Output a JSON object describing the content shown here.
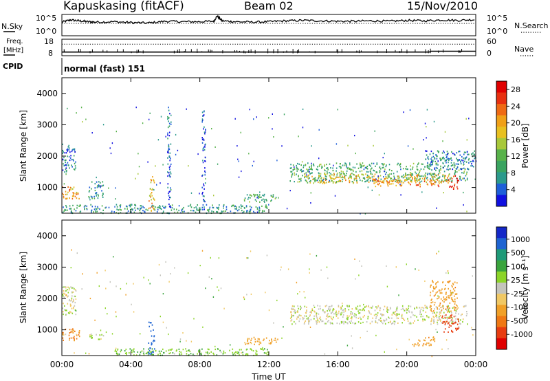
{
  "header": {
    "station": "Kapuskasing (fitACF)",
    "beam": "Beam 02",
    "date": "15/Nov/2010"
  },
  "noise_panel": {
    "left_label": "N.Sky",
    "left_ticks": [
      "10^5",
      "10^0"
    ],
    "right_label": "N.Search",
    "right_ticks": [
      "10^5",
      "10^0"
    ]
  },
  "freq_panel": {
    "left_label_line1": "Freq.",
    "left_label_line2": "[MHz]",
    "left_ticks": [
      "18",
      "8"
    ],
    "right_label": "Nave",
    "right_ticks": [
      "60",
      "0"
    ]
  },
  "cpid": {
    "label": "CPID",
    "mode": "normal (fast) 151"
  },
  "colors": {
    "power_scale": [
      "#1010e0",
      "#1e5fd8",
      "#2b9a8c",
      "#3aa460",
      "#58b24a",
      "#a8c83a",
      "#e8c020",
      "#f0a018",
      "#ef6a14",
      "#e83010",
      "#e00000"
    ],
    "velocity_scale": [
      "#1428c8",
      "#1e64d2",
      "#1e9a78",
      "#3aa43c",
      "#8cd428",
      "#c8c8c0",
      "#f0c864",
      "#f0a028",
      "#ef7814",
      "#e83c10",
      "#e00000"
    ],
    "ground_scatter": "#c4c4bc"
  },
  "chart_data": [
    {
      "type": "line",
      "panel": "noise",
      "x_unit": "UT hours",
      "xlim": [
        0,
        24
      ],
      "series": [
        {
          "name": "N.Sky",
          "x": [
            0,
            0.5,
            1,
            1.5,
            2,
            3,
            4,
            5,
            6,
            7,
            8,
            8.8,
            9,
            9.3,
            10,
            11,
            12,
            13,
            14,
            15,
            16,
            17,
            18,
            19,
            20,
            21,
            22,
            23,
            24
          ],
          "values": [
            3.2,
            3.7,
            3.5,
            3.3,
            3.2,
            3.3,
            3.1,
            3.0,
            3.4,
            3.3,
            3.3,
            3.4,
            4.6,
            3.5,
            3.3,
            3.2,
            3.3,
            3.5,
            3.6,
            3.5,
            3.4,
            3.4,
            3.5,
            3.4,
            3.6,
            3.5,
            3.7,
            3.6,
            3.8
          ]
        },
        {
          "name": "N.Search",
          "x": [
            0,
            4,
            8,
            12,
            16,
            20,
            24
          ],
          "values": [
            2.9,
            2.9,
            2.9,
            2.9,
            2.9,
            2.9,
            2.9
          ]
        }
      ],
      "ylim_log10": [
        0,
        5
      ]
    },
    {
      "type": "line",
      "panel": "frequency_nave",
      "x_unit": "UT hours",
      "xlim": [
        0,
        24
      ],
      "series": [
        {
          "name": "Freq.",
          "x": [
            0,
            2,
            4,
            6,
            8,
            10,
            12,
            14,
            16,
            18,
            20,
            21.3,
            21.4,
            22,
            24
          ],
          "values": [
            10.2,
            10.2,
            10.2,
            10.2,
            10.2,
            10.2,
            10.2,
            10.2,
            10.2,
            10.2,
            10.2,
            10.2,
            10.7,
            10.7,
            10.7
          ]
        },
        {
          "name": "Nave",
          "x": [
            0,
            4,
            8,
            12,
            16,
            20,
            24
          ],
          "values": [
            42,
            42,
            42,
            42,
            42,
            42,
            42
          ]
        }
      ],
      "ylim_left": [
        8,
        18
      ],
      "ylim_right": [
        0,
        60
      ]
    },
    {
      "type": "heatmap",
      "panel": "power",
      "xlabel": "",
      "ylabel": "Slant Range [km]",
      "xlim": [
        0,
        24
      ],
      "ylim": [
        180,
        4500
      ],
      "yticks": [
        1000,
        2000,
        3000,
        4000
      ],
      "colorbar_label": "Power [dB]",
      "colorbar_ticks": [
        4,
        8,
        12,
        16,
        20,
        24,
        28
      ],
      "colorbar_range": [
        0,
        30
      ],
      "regions": [
        {
          "t0": 0.0,
          "t1": 0.8,
          "r0": 1500,
          "r1": 2400,
          "value": 6
        },
        {
          "t0": 0.0,
          "t1": 1.0,
          "r0": 650,
          "r1": 1050,
          "value": 20
        },
        {
          "t0": 1.5,
          "t1": 2.4,
          "r0": 650,
          "r1": 1250,
          "value": 8
        },
        {
          "t0": 0.0,
          "t1": 12.0,
          "r0": 200,
          "r1": 480,
          "value": 8
        },
        {
          "t0": 5.0,
          "t1": 5.35,
          "r0": 250,
          "r1": 1400,
          "value": 18
        },
        {
          "t0": 6.1,
          "t1": 6.3,
          "r0": 300,
          "r1": 3600,
          "value": 4
        },
        {
          "t0": 8.1,
          "t1": 8.3,
          "r0": 300,
          "r1": 3500,
          "value": 4
        },
        {
          "t0": 10.5,
          "t1": 12.5,
          "r0": 550,
          "r1": 800,
          "value": 10
        },
        {
          "t0": 13.2,
          "t1": 23.5,
          "r0": 1200,
          "r1": 1800,
          "value": 10
        },
        {
          "t0": 14.0,
          "t1": 22.5,
          "r0": 1150,
          "r1": 1450,
          "value": 18
        },
        {
          "t0": 18.0,
          "t1": 22.0,
          "r0": 1050,
          "r1": 1300,
          "value": 22
        },
        {
          "t0": 21.0,
          "t1": 24.0,
          "r0": 1600,
          "r1": 2200,
          "value": 6
        },
        {
          "t0": 22.4,
          "t1": 23.0,
          "r0": 950,
          "r1": 1400,
          "value": 28
        }
      ]
    },
    {
      "type": "heatmap",
      "panel": "velocity",
      "xlabel": "Time UT",
      "ylabel": "Slant Range [km]",
      "xlim": [
        0,
        24
      ],
      "xticks": [
        "00:00",
        "04:00",
        "08:00",
        "12:00",
        "16:00",
        "20:00",
        "00:00"
      ],
      "ylim": [
        180,
        4500
      ],
      "yticks": [
        1000,
        2000,
        3000,
        4000
      ],
      "colorbar_label": "Velocity [m s⁻¹]",
      "colorbar_ticks": [
        "1000",
        "500",
        "100",
        "25",
        "-25",
        "-100",
        "-500",
        "-1000"
      ],
      "regions": [
        {
          "t0": 0.0,
          "t1": 0.8,
          "r0": 1500,
          "r1": 2400,
          "value": 0
        },
        {
          "t0": 0.0,
          "t1": 1.0,
          "r0": 650,
          "r1": 1050,
          "value": -250
        },
        {
          "t0": 1.5,
          "t1": 2.4,
          "r0": 700,
          "r1": 900,
          "value": 0
        },
        {
          "t0": 3.0,
          "t1": 12.0,
          "r0": 200,
          "r1": 420,
          "value": 80
        },
        {
          "t0": 5.0,
          "t1": 5.35,
          "r0": 250,
          "r1": 1300,
          "value": 600
        },
        {
          "t0": 10.5,
          "t1": 12.5,
          "r0": 550,
          "r1": 800,
          "value": -120
        },
        {
          "t0": 13.2,
          "t1": 23.5,
          "r0": 1200,
          "r1": 1800,
          "value": 0
        },
        {
          "t0": 22.0,
          "t1": 23.0,
          "r0": 950,
          "r1": 1500,
          "value": -800
        },
        {
          "t0": 21.3,
          "t1": 22.9,
          "r0": 1600,
          "r1": 2600,
          "value": -200
        },
        {
          "t0": 20.3,
          "t1": 21.6,
          "r0": 500,
          "r1": 800,
          "value": -200
        }
      ]
    }
  ]
}
